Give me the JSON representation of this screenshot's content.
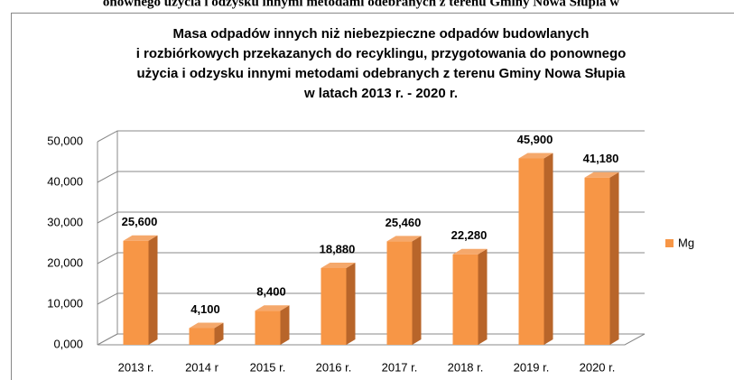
{
  "header_text": "onownego użycia i odzysku innymi metodami odebranych z terenu Gminy Nowa Słupia w",
  "chart_data": {
    "type": "bar3d",
    "title": [
      "Masa odpadów innych niż niebezpieczne odpadów budowlanych",
      "i rozbiórkowych przekazanych do recyklingu, przygotowania do ponownego",
      "użycia i odzysku innymi metodami odebranych z terenu Gminy Nowa Słupia",
      "w latach 2013 r. - 2020 r."
    ],
    "categories": [
      "2013 r.",
      "2014 r",
      "2015 r.",
      "2016 r.",
      "2017 r.",
      "2018 r.",
      "2019 r.",
      "2020 r."
    ],
    "series": [
      {
        "name": "Mg",
        "color": "#f79646",
        "values": [
          25.6,
          4.1,
          8.4,
          18.88,
          25.46,
          22.28,
          45.9,
          41.18
        ],
        "value_labels": [
          "25,600",
          "4,100",
          "8,400",
          "18,880",
          "25,460",
          "22,280",
          "45,900",
          "41,180"
        ]
      }
    ],
    "ylim": [
      0,
      50
    ],
    "yticks": [
      {
        "value": 0,
        "label": "0,000"
      },
      {
        "value": 10,
        "label": "10,000"
      },
      {
        "value": 20,
        "label": "20,000"
      },
      {
        "value": 30,
        "label": "30,000"
      },
      {
        "value": 40,
        "label": "40,000"
      },
      {
        "value": 50,
        "label": "50,000"
      }
    ],
    "grid": true,
    "legend": "right"
  }
}
